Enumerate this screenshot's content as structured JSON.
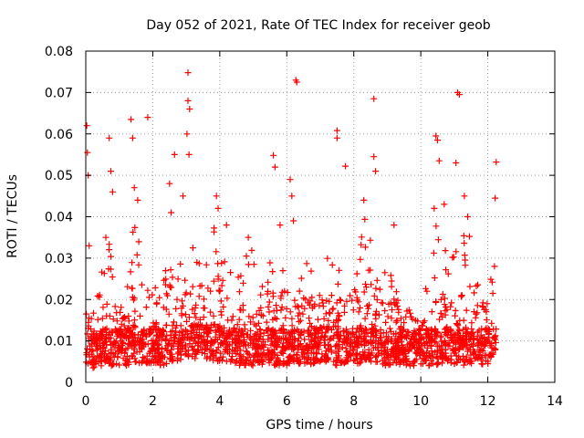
{
  "chart_data": {
    "type": "scatter",
    "title": "Day 052 of 2021, Rate Of TEC Index for receiver geob",
    "xlabel": "GPS time / hours",
    "ylabel": "ROTI / TECUs",
    "xlim": [
      0,
      14
    ],
    "ylim": [
      0,
      0.08
    ],
    "xticks": [
      0,
      2,
      4,
      6,
      8,
      10,
      12,
      14
    ],
    "xtick_labels": [
      "0",
      "2",
      "4",
      "6",
      "8",
      "10",
      "12",
      "14"
    ],
    "yticks": [
      0,
      0.01,
      0.02,
      0.03,
      0.04,
      0.05,
      0.06,
      0.07,
      0.08
    ],
    "ytick_labels": [
      "0",
      "0.01",
      "0.02",
      "0.03",
      "0.04",
      "0.05",
      "0.06",
      "0.07",
      "0.08"
    ],
    "grid": true,
    "marker": "+",
    "color": "#ff0000",
    "data_range_hours": [
      0,
      12.25
    ],
    "spikes": [
      {
        "x": 0.03,
        "y": 0.062
      },
      {
        "x": 0.05,
        "y": 0.0555
      },
      {
        "x": 0.07,
        "y": 0.05
      },
      {
        "x": 0.1,
        "y": 0.033
      },
      {
        "x": 0.7,
        "y": 0.059
      },
      {
        "x": 0.75,
        "y": 0.051
      },
      {
        "x": 0.8,
        "y": 0.046
      },
      {
        "x": 0.6,
        "y": 0.035
      },
      {
        "x": 1.35,
        "y": 0.0635
      },
      {
        "x": 1.4,
        "y": 0.059
      },
      {
        "x": 1.45,
        "y": 0.047
      },
      {
        "x": 1.55,
        "y": 0.044
      },
      {
        "x": 1.85,
        "y": 0.064
      },
      {
        "x": 2.5,
        "y": 0.048
      },
      {
        "x": 2.55,
        "y": 0.041
      },
      {
        "x": 2.65,
        "y": 0.055
      },
      {
        "x": 3.05,
        "y": 0.0748
      },
      {
        "x": 3.05,
        "y": 0.068
      },
      {
        "x": 3.1,
        "y": 0.066
      },
      {
        "x": 3.02,
        "y": 0.06
      },
      {
        "x": 3.08,
        "y": 0.055
      },
      {
        "x": 2.9,
        "y": 0.045
      },
      {
        "x": 3.9,
        "y": 0.045
      },
      {
        "x": 3.95,
        "y": 0.042
      },
      {
        "x": 4.2,
        "y": 0.038
      },
      {
        "x": 4.85,
        "y": 0.035
      },
      {
        "x": 5.6,
        "y": 0.0548
      },
      {
        "x": 5.65,
        "y": 0.052
      },
      {
        "x": 5.8,
        "y": 0.038
      },
      {
        "x": 6.1,
        "y": 0.049
      },
      {
        "x": 6.15,
        "y": 0.045
      },
      {
        "x": 6.2,
        "y": 0.039
      },
      {
        "x": 6.27,
        "y": 0.073
      },
      {
        "x": 6.3,
        "y": 0.0725
      },
      {
        "x": 7.5,
        "y": 0.0608
      },
      {
        "x": 7.5,
        "y": 0.059
      },
      {
        "x": 7.75,
        "y": 0.0522
      },
      {
        "x": 8.3,
        "y": 0.044
      },
      {
        "x": 8.6,
        "y": 0.0685
      },
      {
        "x": 8.6,
        "y": 0.0545
      },
      {
        "x": 8.65,
        "y": 0.051
      },
      {
        "x": 9.2,
        "y": 0.038
      },
      {
        "x": 10.45,
        "y": 0.0595
      },
      {
        "x": 10.5,
        "y": 0.0585
      },
      {
        "x": 10.55,
        "y": 0.0535
      },
      {
        "x": 10.4,
        "y": 0.042
      },
      {
        "x": 10.7,
        "y": 0.043
      },
      {
        "x": 11.1,
        "y": 0.07
      },
      {
        "x": 11.15,
        "y": 0.0695
      },
      {
        "x": 11.05,
        "y": 0.053
      },
      {
        "x": 11.3,
        "y": 0.045
      },
      {
        "x": 11.4,
        "y": 0.04
      },
      {
        "x": 12.25,
        "y": 0.0532
      },
      {
        "x": 12.22,
        "y": 0.0445
      },
      {
        "x": 12.2,
        "y": 0.028
      }
    ],
    "envelope": [
      {
        "x": 0.0,
        "upper": 0.032,
        "base": 0.007
      },
      {
        "x": 0.3,
        "upper": 0.02,
        "base": 0.007
      },
      {
        "x": 0.6,
        "upper": 0.034,
        "base": 0.008
      },
      {
        "x": 0.8,
        "upper": 0.036,
        "base": 0.008
      },
      {
        "x": 1.0,
        "upper": 0.018,
        "base": 0.008
      },
      {
        "x": 1.2,
        "upper": 0.022,
        "base": 0.008
      },
      {
        "x": 1.5,
        "upper": 0.043,
        "base": 0.009
      },
      {
        "x": 1.7,
        "upper": 0.025,
        "base": 0.008
      },
      {
        "x": 2.0,
        "upper": 0.022,
        "base": 0.008
      },
      {
        "x": 2.3,
        "upper": 0.027,
        "base": 0.008
      },
      {
        "x": 2.55,
        "upper": 0.042,
        "base": 0.009
      },
      {
        "x": 2.8,
        "upper": 0.027,
        "base": 0.009
      },
      {
        "x": 3.0,
        "upper": 0.044,
        "base": 0.01
      },
      {
        "x": 3.3,
        "upper": 0.03,
        "base": 0.009
      },
      {
        "x": 3.5,
        "upper": 0.032,
        "base": 0.009
      },
      {
        "x": 3.9,
        "upper": 0.042,
        "base": 0.009
      },
      {
        "x": 4.2,
        "upper": 0.03,
        "base": 0.009
      },
      {
        "x": 4.5,
        "upper": 0.025,
        "base": 0.008
      },
      {
        "x": 4.9,
        "upper": 0.033,
        "base": 0.008
      },
      {
        "x": 5.2,
        "upper": 0.028,
        "base": 0.008
      },
      {
        "x": 5.5,
        "upper": 0.03,
        "base": 0.008
      },
      {
        "x": 5.8,
        "upper": 0.035,
        "base": 0.008
      },
      {
        "x": 6.1,
        "upper": 0.033,
        "base": 0.008
      },
      {
        "x": 6.4,
        "upper": 0.031,
        "base": 0.008
      },
      {
        "x": 6.8,
        "upper": 0.03,
        "base": 0.008
      },
      {
        "x": 7.1,
        "upper": 0.035,
        "base": 0.009
      },
      {
        "x": 7.4,
        "upper": 0.028,
        "base": 0.008
      },
      {
        "x": 7.7,
        "upper": 0.034,
        "base": 0.008
      },
      {
        "x": 8.0,
        "upper": 0.027,
        "base": 0.008
      },
      {
        "x": 8.3,
        "upper": 0.04,
        "base": 0.009
      },
      {
        "x": 8.6,
        "upper": 0.036,
        "base": 0.009
      },
      {
        "x": 8.9,
        "upper": 0.03,
        "base": 0.008
      },
      {
        "x": 9.2,
        "upper": 0.03,
        "base": 0.008
      },
      {
        "x": 9.6,
        "upper": 0.018,
        "base": 0.008
      },
      {
        "x": 9.9,
        "upper": 0.015,
        "base": 0.008
      },
      {
        "x": 10.2,
        "upper": 0.025,
        "base": 0.008
      },
      {
        "x": 10.5,
        "upper": 0.04,
        "base": 0.008
      },
      {
        "x": 10.8,
        "upper": 0.033,
        "base": 0.008
      },
      {
        "x": 11.1,
        "upper": 0.035,
        "base": 0.008
      },
      {
        "x": 11.4,
        "upper": 0.037,
        "base": 0.008
      },
      {
        "x": 11.7,
        "upper": 0.032,
        "base": 0.008
      },
      {
        "x": 12.0,
        "upper": 0.027,
        "base": 0.008
      },
      {
        "x": 12.25,
        "upper": 0.025,
        "base": 0.008
      }
    ]
  }
}
